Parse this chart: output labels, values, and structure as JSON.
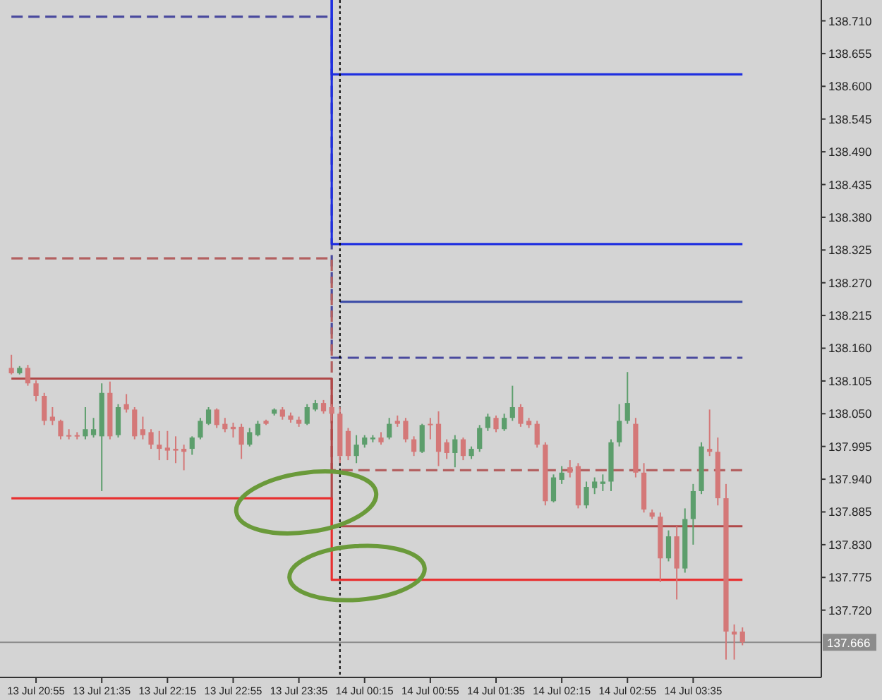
{
  "chart_data": {
    "type": "candlestick",
    "categories": [
      null,
      null,
      null,
      "13 Jul 20:55",
      null,
      null,
      null,
      null,
      null,
      null,
      null,
      "13 Jul 21:35",
      null,
      null,
      null,
      null,
      null,
      null,
      null,
      "13 Jul 22:15",
      null,
      null,
      null,
      null,
      null,
      null,
      null,
      "13 Jul 22:55",
      null,
      null,
      null,
      null,
      null,
      null,
      null,
      "13 Jul 23:35",
      null,
      null,
      null,
      null,
      null,
      null,
      null,
      "14 Jul 00:15",
      null,
      null,
      null,
      null,
      null,
      null,
      null,
      "14 Jul 00:55",
      null,
      null,
      null,
      null,
      null,
      null,
      null,
      "14 Jul 01:35",
      null,
      null,
      null,
      null,
      null,
      null,
      null,
      "14 Jul 02:15",
      null,
      null,
      null,
      null,
      null,
      null,
      null,
      "14 Jul 02:55",
      null,
      null,
      null,
      null,
      null,
      null,
      null,
      "14 Jul 03:35",
      null,
      null,
      null,
      null,
      null,
      null
    ],
    "ohlc": [
      [
        138.127,
        138.149,
        138.116,
        138.118
      ],
      [
        138.118,
        138.13,
        138.116,
        138.127
      ],
      [
        138.127,
        138.132,
        138.097,
        138.101
      ],
      [
        138.101,
        138.106,
        138.071,
        138.08
      ],
      [
        138.08,
        138.085,
        138.031,
        138.038
      ],
      [
        138.045,
        138.061,
        138.031,
        138.038
      ],
      [
        138.038,
        138.04,
        138.007,
        138.012
      ],
      [
        138.014,
        138.024,
        138.007,
        138.012
      ],
      [
        138.014,
        138.019,
        138.007,
        138.012
      ],
      [
        138.012,
        138.061,
        138.007,
        138.024
      ],
      [
        138.014,
        138.043,
        138.01,
        138.024
      ],
      [
        138.012,
        138.101,
        137.92,
        138.085
      ],
      [
        138.085,
        138.104,
        138.007,
        138.012
      ],
      [
        138.014,
        138.066,
        138.01,
        138.061
      ],
      [
        138.066,
        138.083,
        138.052,
        138.057
      ],
      [
        138.057,
        138.061,
        138.007,
        138.012
      ],
      [
        138.024,
        138.045,
        138.007,
        138.014
      ],
      [
        138.019,
        138.024,
        137.991,
        137.998
      ],
      [
        137.998,
        138.021,
        137.972,
        137.991
      ],
      [
        137.993,
        138.021,
        137.972,
        137.988
      ],
      [
        137.991,
        138.012,
        137.967,
        137.988
      ],
      [
        137.991,
        137.998,
        137.955,
        137.986
      ],
      [
        137.991,
        138.012,
        137.981,
        138.01
      ],
      [
        138.01,
        138.043,
        138.007,
        138.038
      ],
      [
        138.033,
        138.061,
        138.031,
        138.057
      ],
      [
        138.057,
        138.059,
        138.026,
        138.031
      ],
      [
        138.033,
        138.043,
        138.019,
        138.024
      ],
      [
        138.028,
        138.035,
        138.01,
        138.024
      ],
      [
        138.028,
        138.033,
        137.974,
        137.998
      ],
      [
        137.998,
        138.026,
        137.995,
        138.019
      ],
      [
        138.014,
        138.038,
        138.012,
        138.033
      ],
      [
        138.038,
        138.04,
        138.031,
        138.033
      ],
      [
        138.05,
        138.059,
        138.047,
        138.057
      ],
      [
        138.057,
        138.061,
        138.04,
        138.045
      ],
      [
        138.047,
        138.052,
        138.035,
        138.04
      ],
      [
        138.04,
        138.045,
        138.028,
        138.033
      ],
      [
        138.033,
        138.066,
        138.031,
        138.061
      ],
      [
        138.057,
        138.073,
        138.054,
        138.068
      ],
      [
        138.068,
        138.073,
        138.05,
        138.054
      ],
      [
        138.061,
        138.066,
        138.038,
        138.05
      ],
      [
        138.05,
        138.061,
        137.967,
        137.979
      ],
      [
        138.021,
        138.026,
        137.972,
        137.979
      ],
      [
        137.979,
        138.014,
        137.967,
        137.998
      ],
      [
        137.998,
        138.014,
        137.993,
        138.01
      ],
      [
        138.007,
        138.014,
        138.002,
        138.01
      ],
      [
        138.01,
        138.019,
        137.998,
        138.002
      ],
      [
        138.01,
        138.043,
        138.007,
        138.033
      ],
      [
        138.038,
        138.047,
        138.028,
        138.033
      ],
      [
        138.038,
        138.043,
        138.002,
        138.007
      ],
      [
        138.007,
        138.012,
        137.979,
        137.986
      ],
      [
        137.986,
        138.033,
        137.984,
        138.031
      ],
      [
        138.033,
        138.043,
        138.007,
        138.031
      ],
      [
        138.033,
        138.054,
        137.962,
        137.986
      ],
      [
        138.002,
        138.007,
        137.974,
        137.984
      ],
      [
        137.984,
        138.014,
        137.96,
        138.007
      ],
      [
        138.007,
        138.01,
        137.972,
        137.979
      ],
      [
        137.979,
        137.995,
        137.974,
        137.991
      ],
      [
        137.991,
        138.031,
        137.986,
        138.026
      ],
      [
        138.026,
        138.05,
        138.021,
        138.045
      ],
      [
        138.043,
        138.047,
        138.019,
        138.024
      ],
      [
        138.024,
        138.05,
        138.021,
        138.043
      ],
      [
        138.043,
        138.097,
        138.038,
        138.061
      ],
      [
        138.061,
        138.066,
        138.028,
        138.033
      ],
      [
        138.038,
        138.043,
        138.026,
        138.031
      ],
      [
        138.033,
        138.038,
        137.993,
        137.998
      ],
      [
        137.998,
        138.002,
        137.896,
        137.903
      ],
      [
        137.903,
        137.948,
        137.901,
        137.943
      ],
      [
        137.939,
        137.962,
        137.932,
        137.951
      ],
      [
        137.96,
        137.972,
        137.943,
        137.951
      ],
      [
        137.962,
        137.967,
        137.891,
        137.896
      ],
      [
        137.896,
        137.936,
        137.891,
        137.927
      ],
      [
        137.925,
        137.943,
        137.915,
        137.936
      ],
      [
        137.932,
        137.948,
        137.92,
        137.936
      ],
      [
        137.936,
        138.007,
        137.92,
        138.002
      ],
      [
        138.002,
        138.066,
        137.995,
        138.038
      ],
      [
        138.038,
        138.12,
        138.033,
        138.068
      ],
      [
        138.033,
        138.043,
        137.943,
        137.951
      ],
      [
        137.951,
        137.967,
        137.884,
        137.889
      ],
      [
        137.884,
        137.889,
        137.873,
        137.877
      ],
      [
        137.877,
        137.884,
        137.767,
        137.807
      ],
      [
        137.807,
        137.854,
        137.802,
        137.844
      ],
      [
        137.844,
        137.861,
        137.738,
        137.79
      ],
      [
        137.79,
        137.891,
        137.783,
        137.873
      ],
      [
        137.873,
        137.932,
        137.83,
        137.92
      ],
      [
        137.92,
        138.002,
        137.915,
        137.995
      ],
      [
        137.991,
        138.057,
        137.979,
        137.986
      ],
      [
        137.986,
        138.01,
        137.896,
        137.908
      ],
      [
        137.908,
        137.932,
        137.637,
        137.684
      ],
      [
        137.684,
        137.696,
        137.637,
        137.679
      ],
      [
        137.684,
        137.691,
        137.661,
        137.666
      ]
    ],
    "colors": [
      "#d47878",
      "#5c9e6c",
      "#d47878",
      "#d47878",
      "#d47878",
      "#d47878",
      "#d47878",
      "#d47878",
      "#d47878",
      "#5c9e6c",
      "#5c9e6c",
      "#5c9e6c",
      "#d47878",
      "#5c9e6c",
      "#d47878",
      "#d47878",
      "#d47878",
      "#d47878",
      "#d47878",
      "#d47878",
      "#d47878",
      "#d47878",
      "#5c9e6c",
      "#5c9e6c",
      "#5c9e6c",
      "#d47878",
      "#d47878",
      "#d47878",
      "#d47878",
      "#5c9e6c",
      "#5c9e6c",
      "#d47878",
      "#5c9e6c",
      "#d47878",
      "#d47878",
      "#d47878",
      "#5c9e6c",
      "#5c9e6c",
      "#d47878",
      "#d47878",
      "#d47878",
      "#d47878",
      "#5c9e6c",
      "#5c9e6c",
      "#5c9e6c",
      "#d47878",
      "#5c9e6c",
      "#d47878",
      "#d47878",
      "#d47878",
      "#5c9e6c",
      "#d47878",
      "#d47878",
      "#d47878",
      "#5c9e6c",
      "#d47878",
      "#5c9e6c",
      "#5c9e6c",
      "#5c9e6c",
      "#d47878",
      "#5c9e6c",
      "#5c9e6c",
      "#d47878",
      "#d47878",
      "#d47878",
      "#d47878",
      "#5c9e6c",
      "#5c9e6c",
      "#d47878",
      "#d47878",
      "#5c9e6c",
      "#5c9e6c",
      "#5c9e6c",
      "#5c9e6c",
      "#5c9e6c",
      "#5c9e6c",
      "#d47878",
      "#d47878",
      "#d47878",
      "#d47878",
      "#5c9e6c",
      "#d47878",
      "#5c9e6c",
      "#5c9e6c",
      "#5c9e6c",
      "#d47878",
      "#d47878",
      "#d47878",
      "#d47878",
      "#d47878"
    ],
    "series": [
      {
        "type": "step",
        "color": "#4a4a9e",
        "line_style": "dashed",
        "values": [
          138.717,
          138.717,
          138.717,
          138.717,
          138.717,
          138.717,
          138.717,
          138.717,
          138.717,
          138.717,
          138.717,
          138.717,
          138.717,
          138.717,
          138.717,
          138.717,
          138.717,
          138.717,
          138.717,
          138.717,
          138.717,
          138.717,
          138.717,
          138.717,
          138.717,
          138.717,
          138.717,
          138.717,
          138.717,
          138.717,
          138.717,
          138.717,
          138.717,
          138.717,
          138.717,
          138.717,
          138.717,
          138.717,
          138.717,
          138.717,
          138.144,
          138.144,
          138.144,
          138.144,
          138.144,
          138.144,
          138.144,
          138.144,
          138.144,
          138.144,
          138.144,
          138.144,
          138.144,
          138.144,
          138.144,
          138.144,
          138.144,
          138.144,
          138.144,
          138.144,
          138.144,
          138.144,
          138.144,
          138.144,
          138.144,
          138.144,
          138.144,
          138.144,
          138.144,
          138.144,
          138.144,
          138.144,
          138.144,
          138.144,
          138.144,
          138.144,
          138.144,
          138.144,
          138.144,
          138.144,
          138.144,
          138.144,
          138.144,
          138.144,
          138.144,
          138.144,
          138.144,
          138.144,
          138.144,
          138.144
        ]
      },
      {
        "type": "step",
        "color": "#b36060",
        "line_style": "dashed",
        "values": [
          138.311,
          138.311,
          138.311,
          138.311,
          138.311,
          138.311,
          138.311,
          138.311,
          138.311,
          138.311,
          138.311,
          138.311,
          138.311,
          138.311,
          138.311,
          138.311,
          138.311,
          138.311,
          138.311,
          138.311,
          138.311,
          138.311,
          138.311,
          138.311,
          138.311,
          138.311,
          138.311,
          138.311,
          138.311,
          138.311,
          138.311,
          138.311,
          138.311,
          138.311,
          138.311,
          138.311,
          138.311,
          138.311,
          138.311,
          138.311,
          137.955,
          137.955,
          137.955,
          137.955,
          137.955,
          137.955,
          137.955,
          137.955,
          137.955,
          137.955,
          137.955,
          137.955,
          137.955,
          137.955,
          137.955,
          137.955,
          137.955,
          137.955,
          137.955,
          137.955,
          137.955,
          137.955,
          137.955,
          137.955,
          137.955,
          137.955,
          137.955,
          137.955,
          137.955,
          137.955,
          137.955,
          137.955,
          137.955,
          137.955,
          137.955,
          137.955,
          137.955,
          137.955,
          137.955,
          137.955,
          137.955,
          137.955,
          137.955,
          137.955,
          137.955,
          137.955,
          137.955,
          137.955,
          137.955,
          137.955
        ]
      },
      {
        "type": "step",
        "color": "#b04848",
        "line_style": "solid",
        "values": [
          138.109,
          138.109,
          138.109,
          138.109,
          138.109,
          138.109,
          138.109,
          138.109,
          138.109,
          138.109,
          138.109,
          138.109,
          138.109,
          138.109,
          138.109,
          138.109,
          138.109,
          138.109,
          138.109,
          138.109,
          138.109,
          138.109,
          138.109,
          138.109,
          138.109,
          138.109,
          138.109,
          138.109,
          138.109,
          138.109,
          138.109,
          138.109,
          138.109,
          138.109,
          138.109,
          138.109,
          138.109,
          138.109,
          138.109,
          138.109,
          137.861,
          137.861,
          137.861,
          137.861,
          137.861,
          137.861,
          137.861,
          137.861,
          137.861,
          137.861,
          137.861,
          137.861,
          137.861,
          137.861,
          137.861,
          137.861,
          137.861,
          137.861,
          137.861,
          137.861,
          137.861,
          137.861,
          137.861,
          137.861,
          137.861,
          137.861,
          137.861,
          137.861,
          137.861,
          137.861,
          137.861,
          137.861,
          137.861,
          137.861,
          137.861,
          137.861,
          137.861,
          137.861,
          137.861,
          137.861,
          137.861,
          137.861,
          137.861,
          137.861,
          137.861,
          137.861,
          137.861,
          137.861,
          137.861,
          137.861
        ]
      },
      {
        "type": "step",
        "color": "#e83030",
        "line_style": "solid",
        "values": [
          137.908,
          137.908,
          137.908,
          137.908,
          137.908,
          137.908,
          137.908,
          137.908,
          137.908,
          137.908,
          137.908,
          137.908,
          137.908,
          137.908,
          137.908,
          137.908,
          137.908,
          137.908,
          137.908,
          137.908,
          137.908,
          137.908,
          137.908,
          137.908,
          137.908,
          137.908,
          137.908,
          137.908,
          137.908,
          137.908,
          137.908,
          137.908,
          137.908,
          137.908,
          137.908,
          137.908,
          137.908,
          137.908,
          137.908,
          137.908,
          137.771,
          137.771,
          137.771,
          137.771,
          137.771,
          137.771,
          137.771,
          137.771,
          137.771,
          137.771,
          137.771,
          137.771,
          137.771,
          137.771,
          137.771,
          137.771,
          137.771,
          137.771,
          137.771,
          137.771,
          137.771,
          137.771,
          137.771,
          137.771,
          137.771,
          137.771,
          137.771,
          137.771,
          137.771,
          137.771,
          137.771,
          137.771,
          137.771,
          137.771,
          137.771,
          137.771,
          137.771,
          137.771,
          137.771,
          137.771,
          137.771,
          137.771,
          137.771,
          137.771,
          137.771,
          137.771,
          137.771,
          137.771,
          137.771,
          137.771
        ]
      },
      {
        "type": "step",
        "color": "#1f2fe0",
        "line_style": "solid",
        "values": [
          null,
          null,
          null,
          null,
          null,
          null,
          null,
          null,
          null,
          null,
          null,
          null,
          null,
          null,
          null,
          null,
          null,
          null,
          null,
          null,
          null,
          null,
          null,
          null,
          null,
          null,
          null,
          null,
          null,
          null,
          null,
          null,
          null,
          null,
          null,
          null,
          null,
          null,
          null,
          138.745,
          138.62,
          138.62,
          138.62,
          138.62,
          138.62,
          138.62,
          138.62,
          138.62,
          138.62,
          138.62,
          138.62,
          138.62,
          138.62,
          138.62,
          138.62,
          138.62,
          138.62,
          138.62,
          138.62,
          138.62,
          138.62,
          138.62,
          138.62,
          138.62,
          138.62,
          138.62,
          138.62,
          138.62,
          138.62,
          138.62,
          138.62,
          138.62,
          138.62,
          138.62,
          138.62,
          138.62,
          138.62,
          138.62,
          138.62,
          138.62,
          138.62,
          138.62,
          138.62,
          138.62,
          138.62,
          138.62,
          138.62,
          138.62,
          138.62,
          138.62
        ]
      },
      {
        "type": "step",
        "color": "#1f2fe0",
        "line_style": "solid",
        "values": [
          null,
          null,
          null,
          null,
          null,
          null,
          null,
          null,
          null,
          null,
          null,
          null,
          null,
          null,
          null,
          null,
          null,
          null,
          null,
          null,
          null,
          null,
          null,
          null,
          null,
          null,
          null,
          null,
          null,
          null,
          null,
          null,
          null,
          null,
          null,
          null,
          null,
          null,
          null,
          138.745,
          138.335,
          138.335,
          138.335,
          138.335,
          138.335,
          138.335,
          138.335,
          138.335,
          138.335,
          138.335,
          138.335,
          138.335,
          138.335,
          138.335,
          138.335,
          138.335,
          138.335,
          138.335,
          138.335,
          138.335,
          138.335,
          138.335,
          138.335,
          138.335,
          138.335,
          138.335,
          138.335,
          138.335,
          138.335,
          138.335,
          138.335,
          138.335,
          138.335,
          138.335,
          138.335,
          138.335,
          138.335,
          138.335,
          138.335,
          138.335,
          138.335,
          138.335,
          138.335,
          138.335,
          138.335,
          138.335,
          138.335,
          138.335,
          138.335,
          138.335
        ]
      },
      {
        "type": "step",
        "color": "#3f4fa8",
        "line_style": "solid",
        "values": [
          null,
          null,
          null,
          null,
          null,
          null,
          null,
          null,
          null,
          null,
          null,
          null,
          null,
          null,
          null,
          null,
          null,
          null,
          null,
          null,
          null,
          null,
          null,
          null,
          null,
          null,
          null,
          null,
          null,
          null,
          null,
          null,
          null,
          null,
          null,
          null,
          null,
          null,
          null,
          null,
          138.238,
          138.238,
          138.238,
          138.238,
          138.238,
          138.238,
          138.238,
          138.238,
          138.238,
          138.238,
          138.238,
          138.238,
          138.238,
          138.238,
          138.238,
          138.238,
          138.238,
          138.238,
          138.238,
          138.238,
          138.238,
          138.238,
          138.238,
          138.238,
          138.238,
          138.238,
          138.238,
          138.238,
          138.238,
          138.238,
          138.238,
          138.238,
          138.238,
          138.238,
          138.238,
          138.238,
          138.238,
          138.238,
          138.238,
          138.238,
          138.238,
          138.238,
          138.238,
          138.238,
          138.238,
          138.238,
          138.238,
          138.238,
          138.238,
          138.238
        ]
      }
    ],
    "ref_lines": [
      {
        "axis": "y",
        "value": 137.666,
        "label": "137.666",
        "color": "#8c8c8c",
        "line_style": "solid"
      }
    ],
    "ylim": [
      137.607,
      138.745
    ],
    "yticks": [
      {
        "value": 137.72,
        "label": "137.720"
      },
      137.775,
      {
        "value": 137.83,
        "label": "137.830"
      },
      137.885,
      {
        "value": 137.94,
        "label": "137.940"
      },
      137.995,
      {
        "value": 138.05,
        "label": "138.050"
      },
      138.105,
      {
        "value": 138.16,
        "label": "138.160"
      },
      138.215,
      {
        "value": 138.27,
        "label": "138.270"
      },
      138.325,
      {
        "value": 138.38,
        "label": "138.380"
      },
      138.435,
      {
        "value": 138.49,
        "label": "138.490"
      },
      138.545,
      {
        "value": 138.6,
        "label": "138.600"
      },
      138.655,
      {
        "value": 138.71,
        "label": "138.710"
      }
    ]
  }
}
